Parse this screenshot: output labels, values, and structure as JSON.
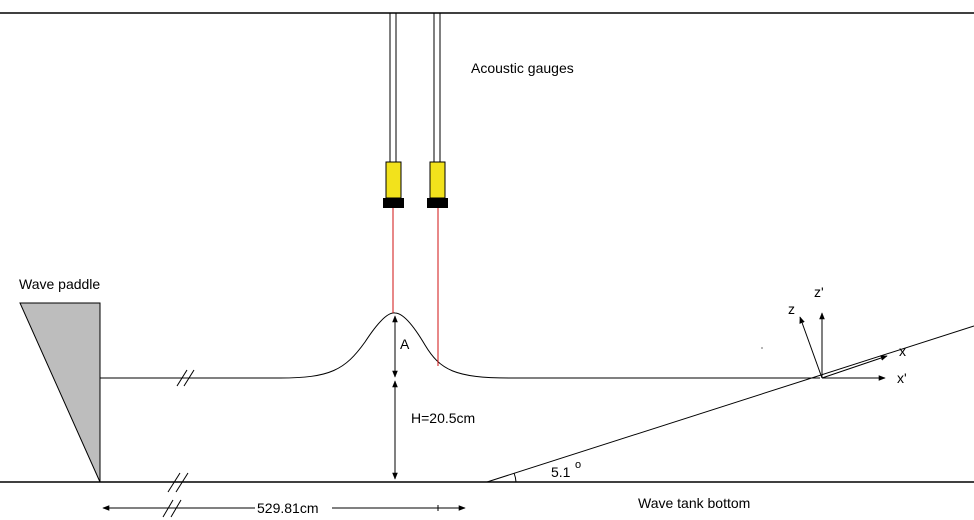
{
  "labels": {
    "acoustic_gauges": "Acoustic gauges",
    "wave_paddle": "Wave paddle",
    "amplitude": "A",
    "depth": "H=20.5cm",
    "distance": "529.81cm",
    "slope_angle": "5.1",
    "degree_symbol": "o",
    "tank_bottom": "Wave tank bottom",
    "axis_x": "x",
    "axis_x_prime": "x'",
    "axis_z": "z",
    "axis_z_prime": "z'"
  },
  "colors": {
    "line": "#000000",
    "paddle_fill": "#bdbdbd",
    "gauge_body": "#f2e21c",
    "gauge_cap": "#000000",
    "laser_beam": "#d01010"
  },
  "icons": {
    "gauge": "acoustic-gauge-sensor",
    "paddle": "wave-paddle-wedge",
    "break_mark": "axis-break-slashes"
  }
}
